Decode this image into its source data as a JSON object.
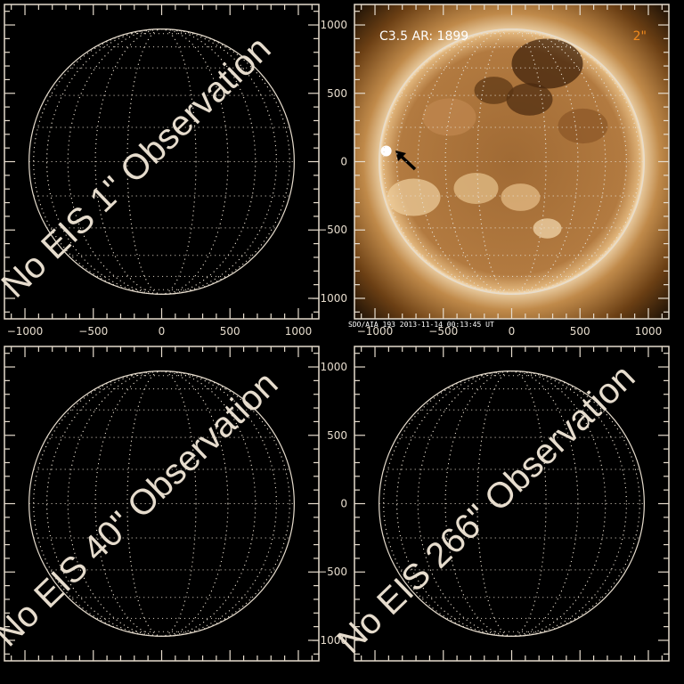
{
  "colors": {
    "axis": "#e6dccd",
    "flare_label": "#ffffff",
    "pixel_label": "#f08a1e",
    "sun_core": "#8a5a2a",
    "sun_bright": "#fff4e0"
  },
  "axis": {
    "range": [
      -1150,
      1150
    ],
    "major_ticks": [
      -1000,
      -500,
      0,
      500,
      1000
    ],
    "tick_labels": [
      "−1000",
      "−500",
      "0",
      "500",
      "1000"
    ],
    "minor_step": 100,
    "solar_radius_arcsec": 970,
    "grid_step_deg": 15
  },
  "panels": [
    {
      "id": "eis-1",
      "type": "empty",
      "message": "No EIS 1\" Observation",
      "show_x_labels": true,
      "show_y_labels": false
    },
    {
      "id": "aia",
      "type": "image",
      "title": "C3.5 AR: 1899",
      "pixel_label": "2\"",
      "caption": "SDO/AIA 193   2013-11-14 00:13:45 UT",
      "arrow_icon": "arrow-pointer-icon",
      "show_x_labels": true,
      "show_y_labels": true
    },
    {
      "id": "eis-40",
      "type": "empty",
      "message": "No EIS 40\" Observation",
      "show_x_labels": false,
      "show_y_labels": false
    },
    {
      "id": "eis-266",
      "type": "empty",
      "message": "No EIS 266\" Observation",
      "show_x_labels": false,
      "show_y_labels": true
    }
  ]
}
